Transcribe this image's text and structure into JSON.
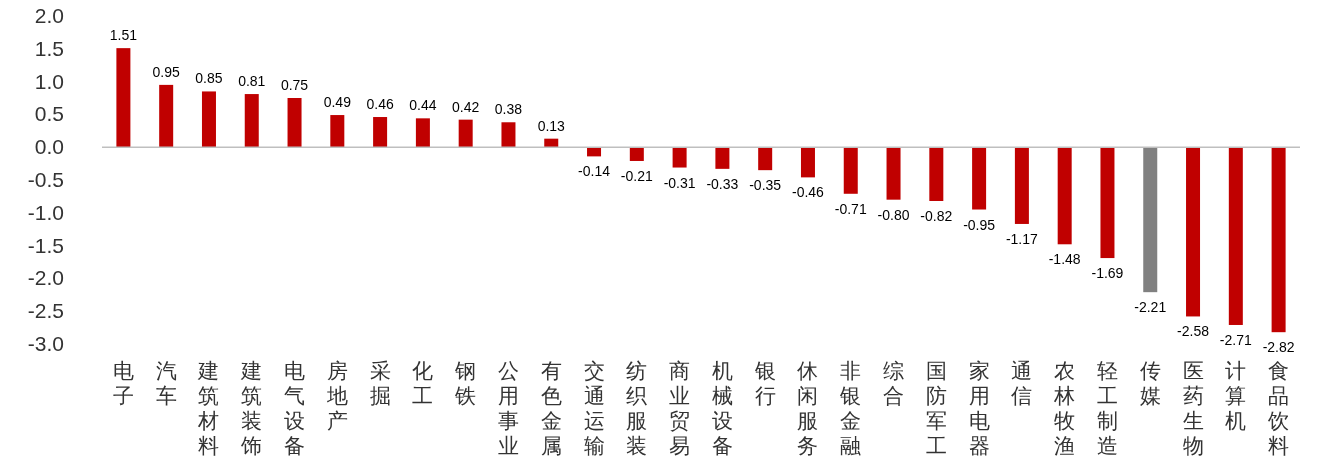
{
  "chart_data": {
    "type": "bar",
    "categories": [
      "电子",
      "汽车",
      "建筑材料",
      "建筑装饰",
      "电气设备",
      "房地产",
      "采掘",
      "化工",
      "钢铁",
      "公用事业",
      "有色金属",
      "交通运输",
      "纺织服装",
      "商业贸易",
      "机械设备",
      "银行",
      "休闲服务",
      "非银金融",
      "综合",
      "国防军工",
      "家用电器",
      "通信",
      "农林牧渔",
      "轻工制造",
      "传媒",
      "医药生物",
      "计算机",
      "食品饮料"
    ],
    "values": [
      1.51,
      0.95,
      0.85,
      0.81,
      0.75,
      0.49,
      0.46,
      0.44,
      0.42,
      0.38,
      0.13,
      -0.14,
      -0.21,
      -0.31,
      -0.33,
      -0.35,
      -0.46,
      -0.71,
      -0.8,
      -0.82,
      -0.95,
      -1.17,
      -1.48,
      -1.69,
      -2.21,
      -2.58,
      -2.71,
      -2.82
    ],
    "value_labels": [
      "1.51",
      "0.95",
      "0.85",
      "0.81",
      "0.75",
      "0.49",
      "0.46",
      "0.44",
      "0.42",
      "0.38",
      "0.13",
      "-0.14",
      "-0.21",
      "-0.31",
      "-0.33",
      "-0.35",
      "-0.46",
      "-0.71",
      "-0.80",
      "-0.82",
      "-0.95",
      "-1.17",
      "-1.48",
      "-1.69",
      "-2.21",
      "-2.58",
      "-2.71",
      "-2.82"
    ],
    "colors": [
      "#c00000",
      "#c00000",
      "#c00000",
      "#c00000",
      "#c00000",
      "#c00000",
      "#c00000",
      "#c00000",
      "#c00000",
      "#c00000",
      "#c00000",
      "#c00000",
      "#c00000",
      "#c00000",
      "#c00000",
      "#c00000",
      "#c00000",
      "#c00000",
      "#c00000",
      "#c00000",
      "#c00000",
      "#c00000",
      "#c00000",
      "#c00000",
      "#808080",
      "#c00000",
      "#c00000",
      "#c00000"
    ],
    "ylim": [
      -3,
      2
    ],
    "yticks": [
      {
        "value": 2,
        "label": "2.0"
      },
      {
        "value": 1.5,
        "label": "1.5"
      },
      {
        "value": 1,
        "label": "1.0"
      },
      {
        "value": 0.5,
        "label": "0.5"
      },
      {
        "value": 0,
        "label": "0.0"
      },
      {
        "value": -0.5,
        "label": "-0.5"
      },
      {
        "value": -1,
        "label": "-1.0"
      },
      {
        "value": -1.5,
        "label": "-1.5"
      },
      {
        "value": -2,
        "label": "-2.0"
      },
      {
        "value": -2.5,
        "label": "-2.5"
      },
      {
        "value": -3,
        "label": "-3.0"
      }
    ]
  }
}
